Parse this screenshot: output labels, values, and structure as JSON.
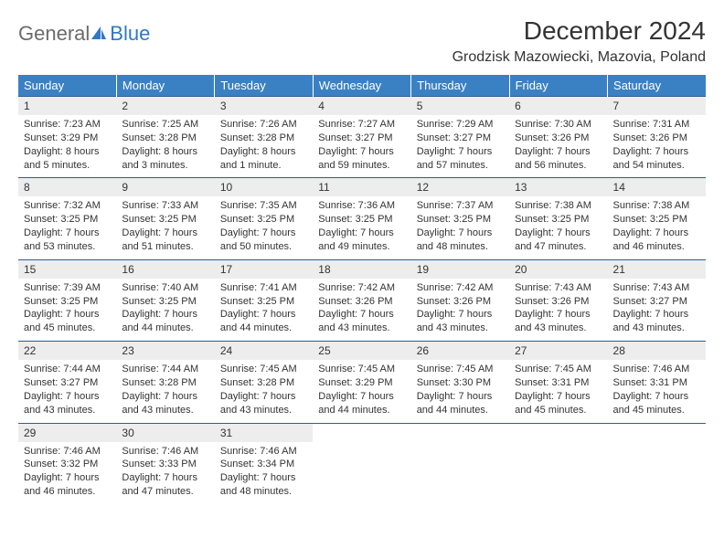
{
  "logo": {
    "general": "General",
    "blue": "Blue",
    "icon_color": "#2f78c3"
  },
  "header": {
    "month_title": "December 2024",
    "location": "Grodzisk Mazowiecki, Mazovia, Poland"
  },
  "colors": {
    "header_band": "#3a81c4",
    "header_text": "#ffffff",
    "daynum_bg": "#ededed",
    "rule": "#2e5e8f",
    "body_text": "#333333",
    "logo_gray": "#6b6b6b",
    "logo_blue": "#2f78c3",
    "background": "#ffffff"
  },
  "typography": {
    "month_title_size": 28,
    "location_size": 16,
    "weekday_size": 13,
    "daynum_size": 12,
    "cell_size": 11
  },
  "weekdays": [
    "Sunday",
    "Monday",
    "Tuesday",
    "Wednesday",
    "Thursday",
    "Friday",
    "Saturday"
  ],
  "days": [
    {
      "n": "1",
      "sunrise": "7:23 AM",
      "sunset": "3:29 PM",
      "daylight": "8 hours and 5 minutes."
    },
    {
      "n": "2",
      "sunrise": "7:25 AM",
      "sunset": "3:28 PM",
      "daylight": "8 hours and 3 minutes."
    },
    {
      "n": "3",
      "sunrise": "7:26 AM",
      "sunset": "3:28 PM",
      "daylight": "8 hours and 1 minute."
    },
    {
      "n": "4",
      "sunrise": "7:27 AM",
      "sunset": "3:27 PM",
      "daylight": "7 hours and 59 minutes."
    },
    {
      "n": "5",
      "sunrise": "7:29 AM",
      "sunset": "3:27 PM",
      "daylight": "7 hours and 57 minutes."
    },
    {
      "n": "6",
      "sunrise": "7:30 AM",
      "sunset": "3:26 PM",
      "daylight": "7 hours and 56 minutes."
    },
    {
      "n": "7",
      "sunrise": "7:31 AM",
      "sunset": "3:26 PM",
      "daylight": "7 hours and 54 minutes."
    },
    {
      "n": "8",
      "sunrise": "7:32 AM",
      "sunset": "3:25 PM",
      "daylight": "7 hours and 53 minutes."
    },
    {
      "n": "9",
      "sunrise": "7:33 AM",
      "sunset": "3:25 PM",
      "daylight": "7 hours and 51 minutes."
    },
    {
      "n": "10",
      "sunrise": "7:35 AM",
      "sunset": "3:25 PM",
      "daylight": "7 hours and 50 minutes."
    },
    {
      "n": "11",
      "sunrise": "7:36 AM",
      "sunset": "3:25 PM",
      "daylight": "7 hours and 49 minutes."
    },
    {
      "n": "12",
      "sunrise": "7:37 AM",
      "sunset": "3:25 PM",
      "daylight": "7 hours and 48 minutes."
    },
    {
      "n": "13",
      "sunrise": "7:38 AM",
      "sunset": "3:25 PM",
      "daylight": "7 hours and 47 minutes."
    },
    {
      "n": "14",
      "sunrise": "7:38 AM",
      "sunset": "3:25 PM",
      "daylight": "7 hours and 46 minutes."
    },
    {
      "n": "15",
      "sunrise": "7:39 AM",
      "sunset": "3:25 PM",
      "daylight": "7 hours and 45 minutes."
    },
    {
      "n": "16",
      "sunrise": "7:40 AM",
      "sunset": "3:25 PM",
      "daylight": "7 hours and 44 minutes."
    },
    {
      "n": "17",
      "sunrise": "7:41 AM",
      "sunset": "3:25 PM",
      "daylight": "7 hours and 44 minutes."
    },
    {
      "n": "18",
      "sunrise": "7:42 AM",
      "sunset": "3:26 PM",
      "daylight": "7 hours and 43 minutes."
    },
    {
      "n": "19",
      "sunrise": "7:42 AM",
      "sunset": "3:26 PM",
      "daylight": "7 hours and 43 minutes."
    },
    {
      "n": "20",
      "sunrise": "7:43 AM",
      "sunset": "3:26 PM",
      "daylight": "7 hours and 43 minutes."
    },
    {
      "n": "21",
      "sunrise": "7:43 AM",
      "sunset": "3:27 PM",
      "daylight": "7 hours and 43 minutes."
    },
    {
      "n": "22",
      "sunrise": "7:44 AM",
      "sunset": "3:27 PM",
      "daylight": "7 hours and 43 minutes."
    },
    {
      "n": "23",
      "sunrise": "7:44 AM",
      "sunset": "3:28 PM",
      "daylight": "7 hours and 43 minutes."
    },
    {
      "n": "24",
      "sunrise": "7:45 AM",
      "sunset": "3:28 PM",
      "daylight": "7 hours and 43 minutes."
    },
    {
      "n": "25",
      "sunrise": "7:45 AM",
      "sunset": "3:29 PM",
      "daylight": "7 hours and 44 minutes."
    },
    {
      "n": "26",
      "sunrise": "7:45 AM",
      "sunset": "3:30 PM",
      "daylight": "7 hours and 44 minutes."
    },
    {
      "n": "27",
      "sunrise": "7:45 AM",
      "sunset": "3:31 PM",
      "daylight": "7 hours and 45 minutes."
    },
    {
      "n": "28",
      "sunrise": "7:46 AM",
      "sunset": "3:31 PM",
      "daylight": "7 hours and 45 minutes."
    },
    {
      "n": "29",
      "sunrise": "7:46 AM",
      "sunset": "3:32 PM",
      "daylight": "7 hours and 46 minutes."
    },
    {
      "n": "30",
      "sunrise": "7:46 AM",
      "sunset": "3:33 PM",
      "daylight": "7 hours and 47 minutes."
    },
    {
      "n": "31",
      "sunrise": "7:46 AM",
      "sunset": "3:34 PM",
      "daylight": "7 hours and 48 minutes."
    }
  ],
  "labels": {
    "sunrise": "Sunrise:",
    "sunset": "Sunset:",
    "daylight": "Daylight:"
  },
  "layout": {
    "columns": 7,
    "first_weekday_index": 0,
    "trailing_blanks": 4
  }
}
